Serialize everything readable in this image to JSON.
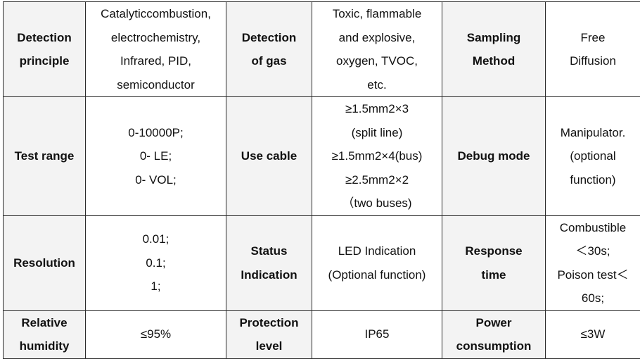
{
  "rows": [
    [
      {
        "kind": "head",
        "lines": [
          "Detection",
          "principle"
        ]
      },
      {
        "kind": "val",
        "lines": [
          "Catalyticcombustion,",
          "electrochemistry,",
          "Infrared,  PID,",
          "semiconductor"
        ]
      },
      {
        "kind": "head",
        "lines": [
          "Detection",
          "of gas"
        ]
      },
      {
        "kind": "val",
        "lines": [
          "Toxic, flammable",
          "and explosive,",
          "oxygen, TVOC,",
          "etc."
        ]
      },
      {
        "kind": "head",
        "lines": [
          "Sampling",
          "Method"
        ]
      },
      {
        "kind": "val",
        "lines": [
          "Free",
          "Diffusion"
        ]
      }
    ],
    [
      {
        "kind": "head",
        "lines": [
          "Test range"
        ]
      },
      {
        "kind": "val",
        "lines": [
          "0-10000P;",
          "0- LE;",
          "0- VOL;"
        ]
      },
      {
        "kind": "head",
        "lines": [
          "Use cable"
        ]
      },
      {
        "kind": "val",
        "lines": [
          "≥1.5mm2×3",
          "(split line)",
          "≥1.5mm2×4(bus)",
          "≥2.5mm2×2",
          "（two buses)"
        ]
      },
      {
        "kind": "head",
        "lines": [
          "Debug mode"
        ]
      },
      {
        "kind": "val",
        "lines": [
          "Manipulator.",
          "(optional",
          "function)"
        ]
      }
    ],
    [
      {
        "kind": "head",
        "lines": [
          "Resolution"
        ]
      },
      {
        "kind": "val",
        "lines": [
          "0.01;",
          "0.1;",
          "1;"
        ]
      },
      {
        "kind": "head",
        "lines": [
          "Status",
          "Indication"
        ]
      },
      {
        "kind": "val",
        "lines": [
          "LED Indication",
          "(Optional function)"
        ]
      },
      {
        "kind": "head",
        "lines": [
          "Response",
          "time"
        ]
      },
      {
        "kind": "val",
        "lines": [
          "Combustible",
          "＜30s;",
          "Poison test＜",
          "60s;"
        ]
      }
    ],
    [
      {
        "kind": "head",
        "lines": [
          "Relative",
          "humidity"
        ]
      },
      {
        "kind": "val",
        "lines": [
          "≤95%"
        ]
      },
      {
        "kind": "head",
        "lines": [
          "Protection",
          "level"
        ]
      },
      {
        "kind": "val",
        "lines": [
          "IP65"
        ]
      },
      {
        "kind": "head",
        "lines": [
          "Power",
          "consumption"
        ]
      },
      {
        "kind": "val",
        "lines": [
          "≤3W"
        ]
      }
    ]
  ]
}
